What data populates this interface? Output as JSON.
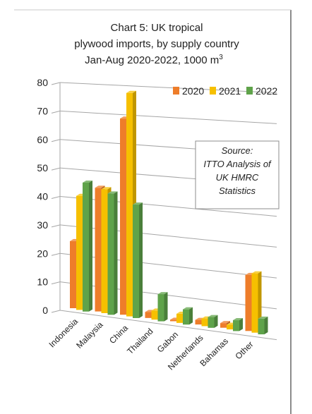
{
  "chart_data": {
    "type": "bar",
    "title_line1": "Chart 5: UK tropical",
    "title_line2": "plywood imports, by supply country",
    "title_line3": "Jan-Aug 2020-2022, 1000 m",
    "title_sup": "3",
    "categories": [
      "Indonesia",
      "Malaysia",
      "China",
      "Thailand",
      "Gabon",
      "Netherlands",
      "Bahamas",
      "Other"
    ],
    "series": [
      {
        "name": "2020",
        "color": "#ee7d2a",
        "values": [
          23,
          42,
          66,
          2,
          0.5,
          1.5,
          1.5,
          18
        ]
      },
      {
        "name": "2021",
        "color": "#f6c000",
        "values": [
          39,
          42,
          75,
          3,
          3,
          2.5,
          1.5,
          19
        ]
      },
      {
        "name": "2022",
        "color": "#5fa34a",
        "values": [
          44,
          41,
          38,
          9,
          5,
          3.5,
          3.5,
          5
        ]
      }
    ],
    "yticks": [
      "0",
      "10",
      "20",
      "30",
      "40",
      "50",
      "60",
      "70",
      "80"
    ],
    "ylim": [
      0,
      80
    ],
    "grid": true,
    "legend_position": "top-right",
    "source_line1": "Source:",
    "source_line2": "ITTO Analysis of",
    "source_line3": "UK HMRC",
    "source_line4": "Statistics"
  }
}
